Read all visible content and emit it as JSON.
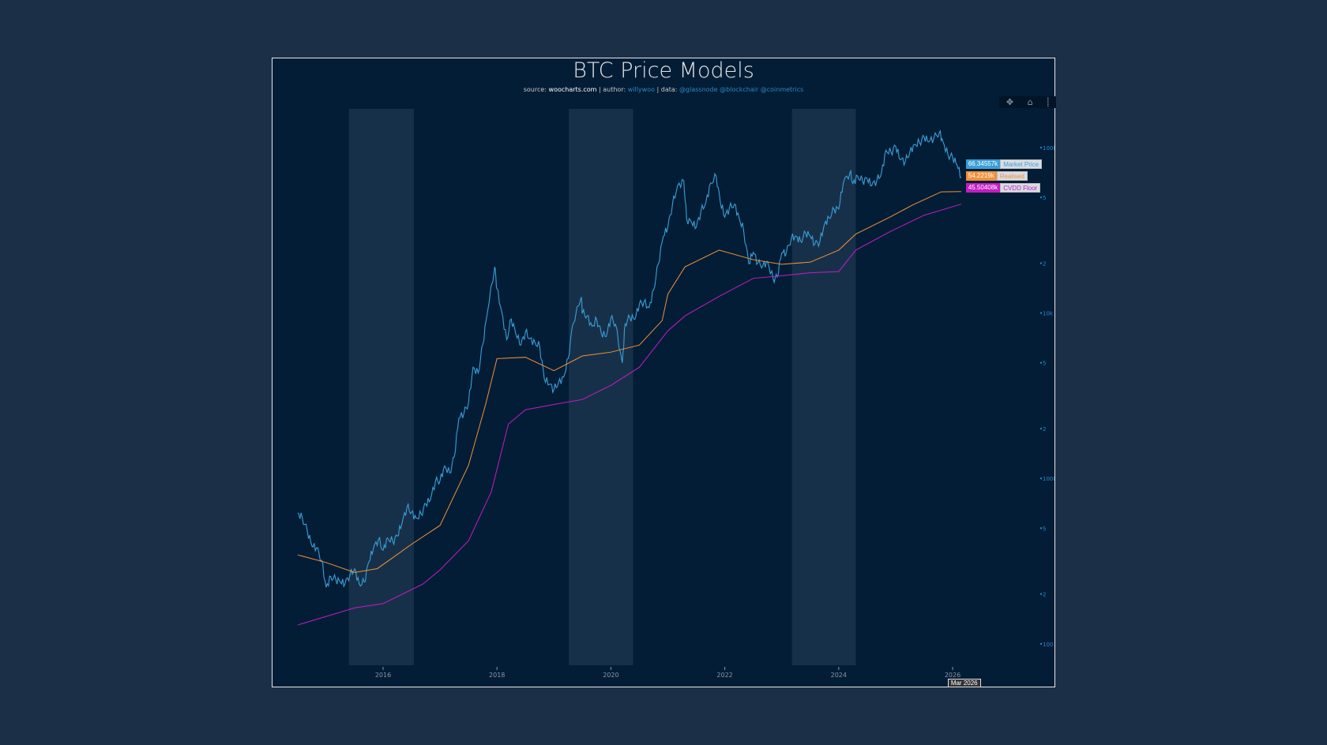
{
  "title": "BTC Price Models",
  "subtitle": {
    "source_label": "source:",
    "source": "woocharts.com",
    "author_label": "| author:",
    "author": "willywoo",
    "data_label": "| data:",
    "data": "@glassnode @blockchair @coinmetrics"
  },
  "toolbar": {
    "pan": "pan-icon",
    "home": "home-icon",
    "spike": "spikelines-icon"
  },
  "hover_label": "Mar 2026",
  "colors": {
    "market": "#3a9fd6",
    "realised": "#f0913a",
    "cvdd": "#c21dc2",
    "shade": "#173049",
    "background": "#031d36"
  },
  "chart_data": {
    "type": "line",
    "title": "BTC Price Models",
    "y_scale": "log",
    "ylim": [
      80,
      160000
    ],
    "xlim": [
      2014.2,
      2027.0
    ],
    "x_ticks": [
      "2016",
      "2018",
      "2020",
      "2022",
      "2024",
      "2026"
    ],
    "y_ticks": [
      {
        "v": 100000,
        "l": "100k"
      },
      {
        "v": 50000,
        "l": "5"
      },
      {
        "v": 20000,
        "l": "2"
      },
      {
        "v": 10000,
        "l": "10k"
      },
      {
        "v": 5000,
        "l": "5"
      },
      {
        "v": 2000,
        "l": "2"
      },
      {
        "v": 1000,
        "l": "1000"
      },
      {
        "v": 500,
        "l": "5"
      },
      {
        "v": 200,
        "l": "2"
      },
      {
        "v": 100,
        "l": "100"
      }
    ],
    "shaded_periods": [
      [
        2015.4,
        2016.54
      ],
      [
        2019.26,
        2020.39
      ],
      [
        2023.18,
        2024.3
      ]
    ],
    "grid": false,
    "series": [
      {
        "name": "Market Price",
        "last_value": "66.34557k",
        "x": [
          2014.5,
          2014.58,
          2014.67,
          2014.75,
          2014.83,
          2014.92,
          2015.0,
          2015.08,
          2015.17,
          2015.25,
          2015.33,
          2015.42,
          2015.5,
          2015.58,
          2015.67,
          2015.75,
          2015.83,
          2015.92,
          2016.0,
          2016.08,
          2016.17,
          2016.25,
          2016.33,
          2016.42,
          2016.5,
          2016.58,
          2016.67,
          2016.75,
          2016.83,
          2016.92,
          2017.0,
          2017.08,
          2017.17,
          2017.25,
          2017.33,
          2017.42,
          2017.5,
          2017.58,
          2017.67,
          2017.75,
          2017.83,
          2017.96,
          2018.0,
          2018.08,
          2018.17,
          2018.25,
          2018.33,
          2018.42,
          2018.5,
          2018.58,
          2018.67,
          2018.75,
          2018.83,
          2018.92,
          2019.0,
          2019.08,
          2019.17,
          2019.25,
          2019.33,
          2019.48,
          2019.5,
          2019.58,
          2019.67,
          2019.75,
          2019.83,
          2019.92,
          2020.0,
          2020.08,
          2020.2,
          2020.25,
          2020.33,
          2020.42,
          2020.5,
          2020.58,
          2020.67,
          2020.75,
          2020.83,
          2020.92,
          2021.0,
          2021.08,
          2021.17,
          2021.28,
          2021.33,
          2021.42,
          2021.5,
          2021.58,
          2021.67,
          2021.75,
          2021.85,
          2021.92,
          2022.0,
          2022.08,
          2022.17,
          2022.25,
          2022.33,
          2022.42,
          2022.5,
          2022.58,
          2022.67,
          2022.75,
          2022.85,
          2022.92,
          2023.0,
          2023.08,
          2023.17,
          2023.25,
          2023.33,
          2023.42,
          2023.5,
          2023.58,
          2023.67,
          2023.75,
          2023.83,
          2023.92,
          2024.0,
          2024.08,
          2024.2,
          2024.25,
          2024.33,
          2024.42,
          2024.5,
          2024.58,
          2024.67,
          2024.75,
          2024.83,
          2024.92,
          2025.0,
          2025.08,
          2025.17,
          2025.25,
          2025.33,
          2025.42,
          2025.5,
          2025.58,
          2025.67,
          2025.77,
          2025.83,
          2025.92,
          2026.0,
          2026.08,
          2026.15
        ],
        "values": [
          620,
          580,
          480,
          390,
          380,
          320,
          220,
          255,
          245,
          236,
          230,
          263,
          284,
          230,
          236,
          313,
          377,
          430,
          368,
          437,
          416,
          448,
          531,
          673,
          624,
          575,
          609,
          700,
          742,
          963,
          970,
          1190,
          1080,
          1350,
          2300,
          2480,
          2870,
          4700,
          4340,
          6450,
          10000,
          19000,
          14000,
          10300,
          6900,
          9200,
          7500,
          6400,
          7700,
          7000,
          6600,
          6300,
          4000,
          3700,
          3450,
          3800,
          4100,
          5300,
          8500,
          12500,
          10000,
          9600,
          8300,
          9150,
          7550,
          7200,
          9350,
          8550,
          5000,
          8600,
          9450,
          9140,
          11300,
          11650,
          10780,
          13800,
          19700,
          29000,
          33000,
          45000,
          58800,
          63000,
          37000,
          35000,
          33000,
          41000,
          47000,
          61000,
          67000,
          47000,
          38000,
          43000,
          45500,
          37700,
          31800,
          19900,
          23300,
          20000,
          19400,
          20500,
          16000,
          16500,
          23100,
          23100,
          28500,
          29200,
          27200,
          30500,
          29200,
          26000,
          27000,
          34600,
          37700,
          42300,
          42500,
          61000,
          71000,
          60600,
          67500,
          62700,
          64600,
          59000,
          63300,
          70200,
          96400,
          93400,
          102000,
          84300,
          82500,
          94200,
          104600,
          107100,
          115700,
          108200,
          114000,
          124000,
          109000,
          90000,
          87500,
          78000,
          66345
        ]
      },
      {
        "name": "Realised",
        "last_value": "54.2219k",
        "x": [
          2014.5,
          2015.0,
          2015.5,
          2015.9,
          2016.5,
          2017.0,
          2017.5,
          2017.8,
          2018.0,
          2018.5,
          2019.0,
          2019.5,
          2020.0,
          2020.5,
          2020.9,
          2021.0,
          2021.3,
          2021.9,
          2022.5,
          2023.0,
          2023.5,
          2024.0,
          2024.3,
          2024.9,
          2025.3,
          2025.8,
          2026.15
        ],
        "values": [
          345,
          310,
          270,
          285,
          400,
          520,
          1200,
          2800,
          5300,
          5400,
          4480,
          5500,
          5800,
          6400,
          9000,
          13000,
          19000,
          24000,
          21000,
          19700,
          20300,
          24000,
          30000,
          38000,
          45000,
          54000,
          54222
        ]
      },
      {
        "name": "CVDD Floor",
        "last_value": "45.50408k",
        "x": [
          2014.5,
          2015.5,
          2016.0,
          2016.7,
          2017.0,
          2017.5,
          2017.9,
          2018.2,
          2018.5,
          2019.0,
          2019.5,
          2020.0,
          2020.5,
          2021.0,
          2021.3,
          2021.9,
          2022.5,
          2023.0,
          2023.5,
          2024.0,
          2024.3,
          2024.9,
          2025.5,
          2026.15
        ],
        "values": [
          130,
          165,
          175,
          230,
          280,
          420,
          830,
          2130,
          2600,
          2800,
          3000,
          3650,
          4700,
          7800,
          9600,
          12600,
          16200,
          16800,
          17500,
          17800,
          24000,
          31000,
          39000,
          45504
        ]
      }
    ]
  }
}
